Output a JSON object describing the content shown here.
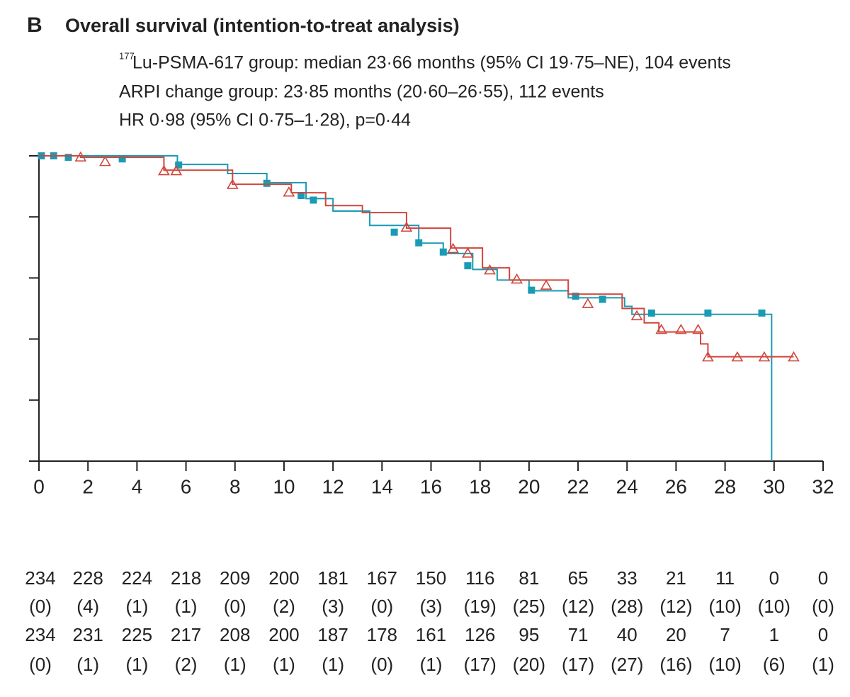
{
  "chart_data": {
    "type": "km",
    "panel_label": "B",
    "title": "Overall survival (intention-to-treat analysis)",
    "annotation_superscript": "177",
    "annotations": [
      "Lu-PSMA-617 group: median 23·66 months (95% CI 19·75–NE), 104 events",
      "ARPI change group: 23·85 months (20·60–26·55), 112 events",
      "HR 0·98 (95% CI 0·75–1·28), p=0·44"
    ],
    "xlim": [
      0,
      32
    ],
    "xticks": [
      0,
      2,
      4,
      6,
      8,
      10,
      12,
      14,
      16,
      18,
      20,
      22,
      24,
      26,
      28,
      30,
      32
    ],
    "ylim": [
      0,
      100
    ],
    "yticks": [
      0,
      20,
      40,
      60,
      80,
      100
    ],
    "series": [
      {
        "color": "#1a9bb4",
        "marker": "square",
        "x": [
          0,
          5.65,
          7.7,
          9.3,
          10.9,
          12,
          13.5,
          15.5,
          16.5,
          17.7,
          18.7,
          20,
          21.6,
          23.9,
          24.2,
          29.9,
          29.9
        ],
        "values": [
          100,
          97.2,
          94.2,
          91.2,
          86,
          81.9,
          77.2,
          71.4,
          68,
          62.8,
          59.3,
          55.8,
          53.5,
          50.7,
          48.1,
          48.1,
          0
        ],
        "censored_x": [
          0.1,
          0.6,
          1.2,
          3.4,
          5.7,
          9.3,
          10.7,
          11.2,
          14.5,
          15.5,
          16.5,
          17.5,
          20.1,
          21.9,
          23,
          25,
          27.3,
          29.5
        ],
        "censored_values": [
          100,
          100,
          99.5,
          99,
          97,
          91,
          87,
          85.5,
          75,
          71.5,
          68.5,
          64,
          56,
          54,
          53,
          48.5,
          48.5,
          48.5
        ]
      },
      {
        "color": "#d0463c",
        "marker": "triangle",
        "x": [
          0,
          1.7,
          5.1,
          7.9,
          10.3,
          11.7,
          13.2,
          15,
          16.8,
          18.1,
          19.2,
          21.6,
          23.8,
          24.7,
          25.3,
          27,
          27.3,
          30.8
        ],
        "values": [
          100,
          99.5,
          95.3,
          90.7,
          87.9,
          83.7,
          81.4,
          76.3,
          69.8,
          63.3,
          59.3,
          54.7,
          50,
          45.3,
          42.3,
          38.4,
          34.2,
          34.2
        ],
        "censored_x": [
          1.7,
          2.7,
          5.1,
          5.6,
          7.9,
          10.2,
          15,
          16.9,
          17.5,
          18.4,
          19.5,
          20.7,
          22.4,
          24.4,
          25.4,
          26.2,
          26.9,
          27.3,
          28.5,
          29.6,
          30.8
        ],
        "censored_values": [
          99.5,
          98,
          95,
          95,
          90.5,
          88,
          76.5,
          69.5,
          68,
          62.5,
          59.5,
          57.5,
          51.5,
          47.5,
          43,
          43,
          43,
          34,
          34,
          34,
          34
        ]
      }
    ],
    "risk_table": [
      [
        "234",
        "228",
        "224",
        "218",
        "209",
        "200",
        "181",
        "167",
        "150",
        "116",
        "81",
        "65",
        "33",
        "21",
        "11",
        "0",
        "0"
      ],
      [
        "(0)",
        "(4)",
        "(1)",
        "(1)",
        "(0)",
        "(2)",
        "(3)",
        "(0)",
        "(3)",
        "(19)",
        "(25)",
        "(12)",
        "(28)",
        "(12)",
        "(10)",
        "(10)",
        "(0)"
      ],
      [
        "234",
        "231",
        "225",
        "217",
        "208",
        "200",
        "187",
        "178",
        "161",
        "126",
        "95",
        "71",
        "40",
        "20",
        "7",
        "1",
        "0"
      ],
      [
        "(0)",
        "(1)",
        "(1)",
        "(2)",
        "(1)",
        "(1)",
        "(1)",
        "(0)",
        "(1)",
        "(17)",
        "(20)",
        "(17)",
        "(27)",
        "(16)",
        "(10)",
        "(6)",
        "(1)"
      ]
    ]
  }
}
